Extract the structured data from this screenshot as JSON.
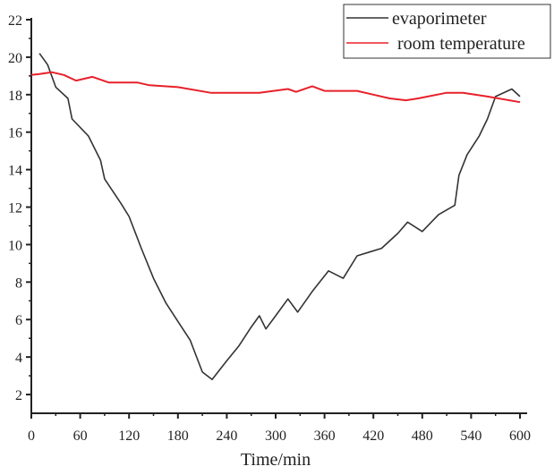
{
  "chart_data": {
    "type": "line",
    "title": "",
    "xlabel": "Time/min",
    "ylabel": "",
    "xlim": [
      0,
      600
    ],
    "ylim": [
      1,
      22
    ],
    "xticks": [
      0,
      60,
      120,
      180,
      240,
      300,
      360,
      420,
      480,
      540,
      600
    ],
    "yticks": [
      2,
      4,
      6,
      8,
      10,
      12,
      14,
      16,
      18,
      20,
      22
    ],
    "grid": false,
    "legend_position": "top-right",
    "series": [
      {
        "name": "evaporimeter",
        "color": "#333333",
        "points": [
          [
            10,
            20.2
          ],
          [
            20,
            19.6
          ],
          [
            30,
            18.4
          ],
          [
            45,
            17.8
          ],
          [
            50,
            16.7
          ],
          [
            70,
            15.8
          ],
          [
            85,
            14.5
          ],
          [
            90,
            13.5
          ],
          [
            110,
            12.2
          ],
          [
            120,
            11.5
          ],
          [
            135,
            9.8
          ],
          [
            150,
            8.2
          ],
          [
            165,
            6.9
          ],
          [
            180,
            5.9
          ],
          [
            195,
            4.9
          ],
          [
            210,
            3.2
          ],
          [
            222,
            2.8
          ],
          [
            240,
            3.8
          ],
          [
            255,
            4.6
          ],
          [
            270,
            5.6
          ],
          [
            280,
            6.2
          ],
          [
            288,
            5.5
          ],
          [
            300,
            6.2
          ],
          [
            315,
            7.1
          ],
          [
            327,
            6.4
          ],
          [
            345,
            7.5
          ],
          [
            365,
            8.6
          ],
          [
            383,
            8.2
          ],
          [
            400,
            9.4
          ],
          [
            415,
            9.6
          ],
          [
            430,
            9.8
          ],
          [
            450,
            10.6
          ],
          [
            462,
            11.2
          ],
          [
            480,
            10.7
          ],
          [
            500,
            11.6
          ],
          [
            520,
            12.1
          ],
          [
            525,
            13.7
          ],
          [
            535,
            14.8
          ],
          [
            550,
            15.8
          ],
          [
            560,
            16.7
          ],
          [
            570,
            17.9
          ],
          [
            590,
            18.3
          ],
          [
            600,
            17.9
          ]
        ]
      },
      {
        "name": "room temperature",
        "color": "#e8202a",
        "points": [
          [
            0,
            19.05
          ],
          [
            10,
            19.1
          ],
          [
            25,
            19.2
          ],
          [
            40,
            19.05
          ],
          [
            55,
            18.75
          ],
          [
            75,
            18.95
          ],
          [
            95,
            18.65
          ],
          [
            130,
            18.65
          ],
          [
            145,
            18.5
          ],
          [
            180,
            18.4
          ],
          [
            220,
            18.1
          ],
          [
            280,
            18.1
          ],
          [
            315,
            18.3
          ],
          [
            325,
            18.15
          ],
          [
            345,
            18.45
          ],
          [
            360,
            18.2
          ],
          [
            400,
            18.2
          ],
          [
            420,
            18.0
          ],
          [
            440,
            17.8
          ],
          [
            460,
            17.7
          ],
          [
            475,
            17.8
          ],
          [
            510,
            18.1
          ],
          [
            530,
            18.1
          ],
          [
            560,
            17.9
          ],
          [
            600,
            17.6
          ]
        ]
      }
    ]
  }
}
